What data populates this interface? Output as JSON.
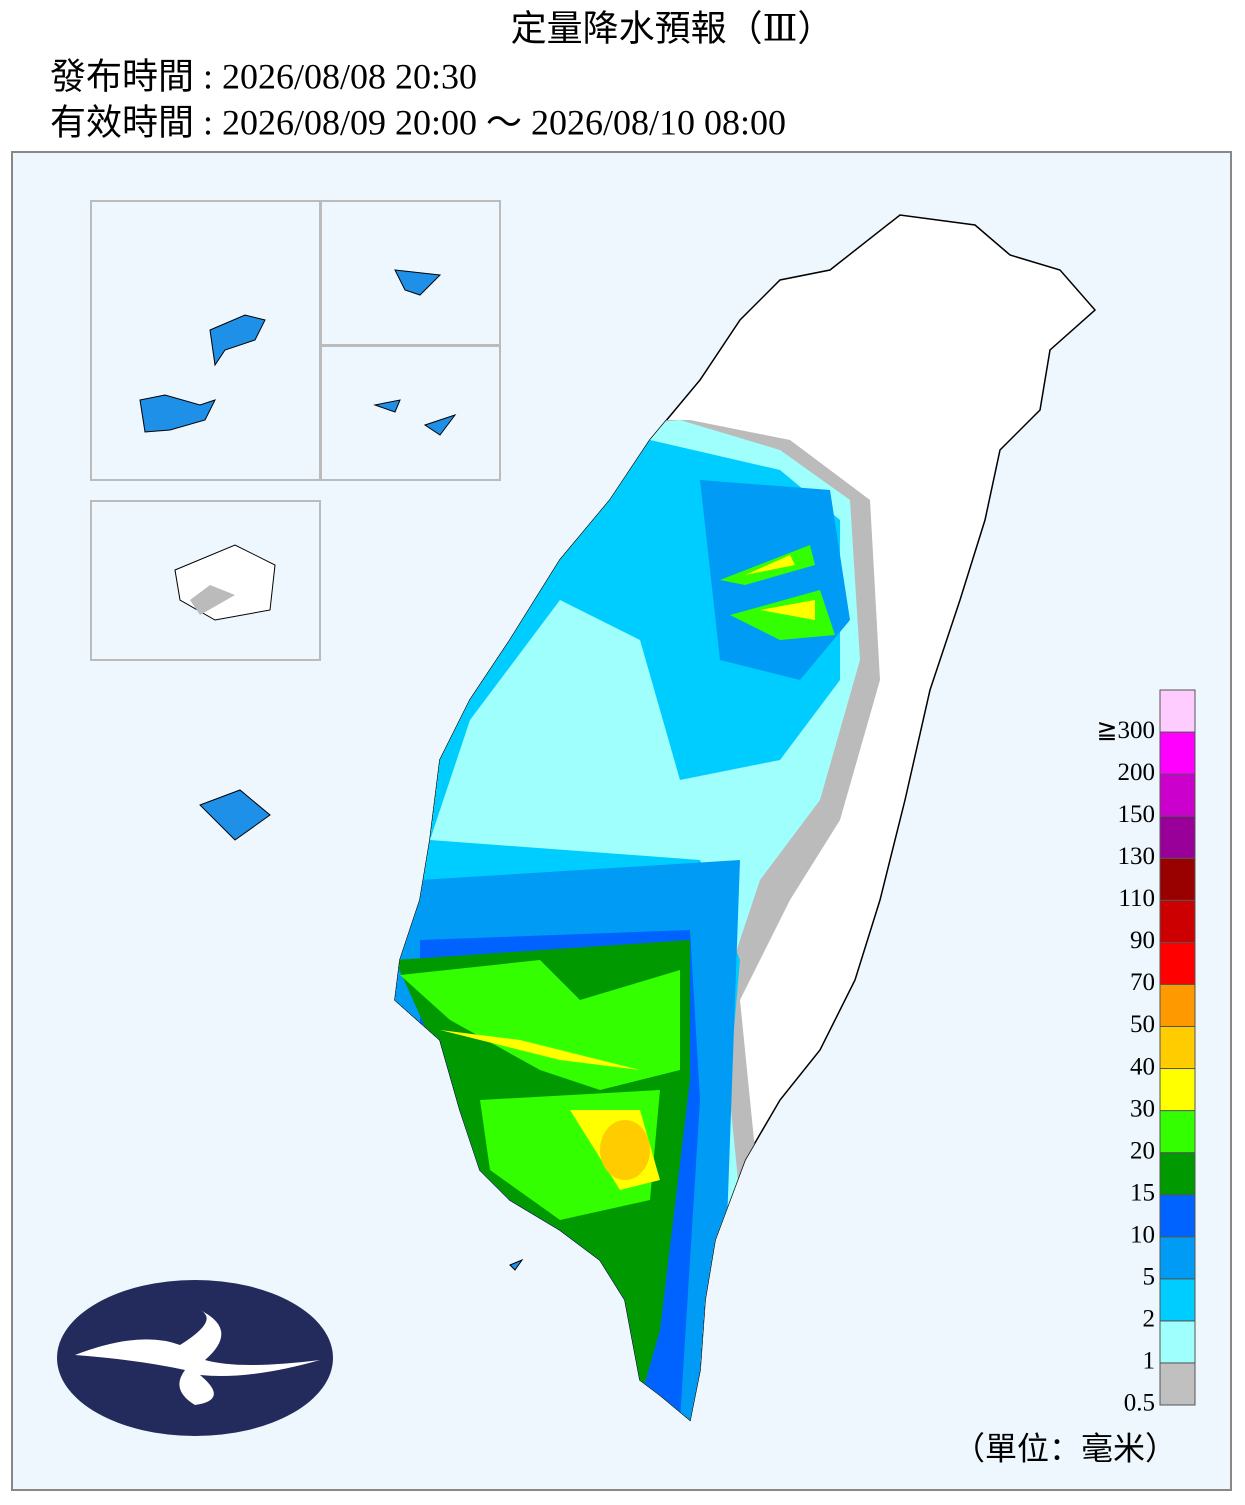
{
  "header": {
    "title": "定量降水預報（Ⅲ）",
    "issued": "發布時間 : 2026/08/08 20:30",
    "valid": "有效時間 : 2026/08/09 20:00 ～ 2026/08/10 08:00"
  },
  "legend": {
    "labels": [
      "0.5",
      "1",
      "2",
      "5",
      "10",
      "15",
      "20",
      "30",
      "40",
      "50",
      "70",
      "90",
      "110",
      "130",
      "150",
      "200",
      "≧300"
    ],
    "colors": [
      "#c0c0c0",
      "#9ffffc",
      "#00cdff",
      "#009bf5",
      "#0063ff",
      "#009a00",
      "#33ff00",
      "#ffff00",
      "#ffcc00",
      "#ff9900",
      "#ff0000",
      "#cc0000",
      "#990000",
      "#990099",
      "#cc00cc",
      "#ff00ff",
      "#ffccff"
    ]
  },
  "unit": "（單位：毫米）"
}
